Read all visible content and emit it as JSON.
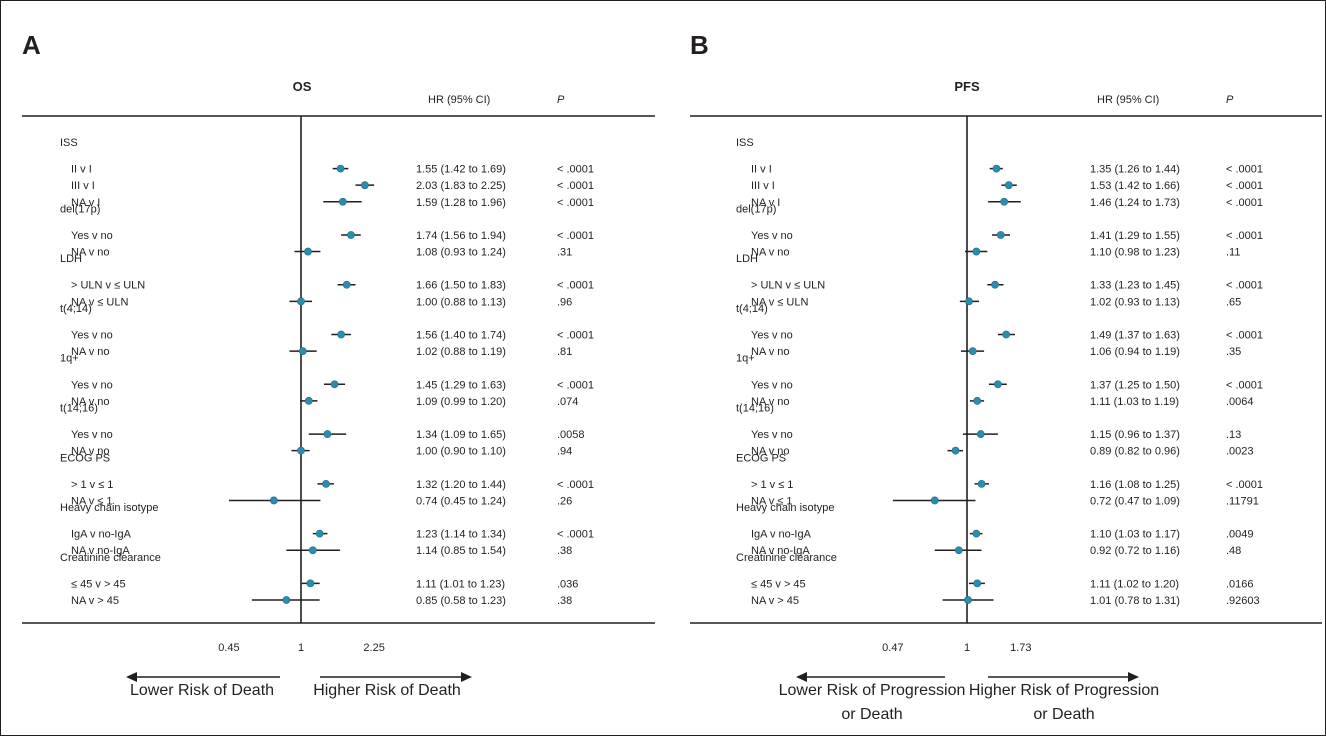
{
  "chart_data": [
    {
      "type": "forest",
      "panel_letter": "A",
      "title": "OS",
      "hr_header": "HR (95% CI)",
      "p_header": "P",
      "axis_ticks": [
        {
          "value": 0.45,
          "label": "0.45"
        },
        {
          "value": 1,
          "label": "1"
        },
        {
          "value": 2.25,
          "label": "2.25"
        }
      ],
      "left_label": [
        "Lower Risk of Death"
      ],
      "right_label": [
        "Higher Risk of Death"
      ],
      "groups": [
        {
          "name": "ISS",
          "rows": [
            {
              "label": "II v I",
              "hr": 1.55,
              "lo": 1.42,
              "hi": 1.69,
              "ci_text": "1.55 (1.42 to 1.69)",
              "p": "< .0001"
            },
            {
              "label": "III v I",
              "hr": 2.03,
              "lo": 1.83,
              "hi": 2.25,
              "ci_text": "2.03 (1.83 to 2.25)",
              "p": "< .0001"
            },
            {
              "label": "NA v I",
              "hr": 1.59,
              "lo": 1.28,
              "hi": 1.96,
              "ci_text": "1.59 (1.28 to 1.96)",
              "p": "< .0001"
            }
          ]
        },
        {
          "name": "del(17p)",
          "rows": [
            {
              "label": "Yes v no",
              "hr": 1.74,
              "lo": 1.56,
              "hi": 1.94,
              "ci_text": "1.74 (1.56 to 1.94)",
              "p": "< .0001"
            },
            {
              "label": "NA v no",
              "hr": 1.08,
              "lo": 0.93,
              "hi": 1.24,
              "ci_text": "1.08 (0.93 to 1.24)",
              "p": ".31"
            }
          ]
        },
        {
          "name": "LDH",
          "rows": [
            {
              "label": "> ULN v ≤ ULN",
              "hr": 1.66,
              "lo": 1.5,
              "hi": 1.83,
              "ci_text": "1.66 (1.50 to 1.83)",
              "p": "< .0001"
            },
            {
              "label": "NA v ≤ ULN",
              "hr": 1.0,
              "lo": 0.88,
              "hi": 1.13,
              "ci_text": "1.00 (0.88 to 1.13)",
              "p": ".96"
            }
          ]
        },
        {
          "name": "t(4;14)",
          "rows": [
            {
              "label": "Yes v no",
              "hr": 1.56,
              "lo": 1.4,
              "hi": 1.74,
              "ci_text": "1.56 (1.40 to 1.74)",
              "p": "< .0001"
            },
            {
              "label": "NA v no",
              "hr": 1.02,
              "lo": 0.88,
              "hi": 1.19,
              "ci_text": "1.02 (0.88 to 1.19)",
              "p": ".81"
            }
          ]
        },
        {
          "name": "1q+",
          "rows": [
            {
              "label": "Yes v no",
              "hr": 1.45,
              "lo": 1.29,
              "hi": 1.63,
              "ci_text": "1.45 (1.29 to 1.63)",
              "p": "< .0001"
            },
            {
              "label": "NA v no",
              "hr": 1.09,
              "lo": 0.99,
              "hi": 1.2,
              "ci_text": "1.09 (0.99 to 1.20)",
              "p": ".074"
            }
          ]
        },
        {
          "name": "t(14;16)",
          "rows": [
            {
              "label": "Yes v no",
              "hr": 1.34,
              "lo": 1.09,
              "hi": 1.65,
              "ci_text": "1.34 (1.09 to 1.65)",
              "p": ".0058"
            },
            {
              "label": "NA v no",
              "hr": 1.0,
              "lo": 0.9,
              "hi": 1.1,
              "ci_text": "1.00 (0.90 to 1.10)",
              "p": ".94"
            }
          ]
        },
        {
          "name": "ECOG PS",
          "rows": [
            {
              "label": "> 1 v ≤ 1",
              "hr": 1.32,
              "lo": 1.2,
              "hi": 1.44,
              "ci_text": "1.32 (1.20 to 1.44)",
              "p": "< .0001"
            },
            {
              "label": "NA v ≤ 1",
              "hr": 0.74,
              "lo": 0.45,
              "hi": 1.24,
              "ci_text": "0.74 (0.45 to 1.24)",
              "p": ".26"
            }
          ]
        },
        {
          "name": "Heavy chain isotype",
          "rows": [
            {
              "label": "IgA v no-IgA",
              "hr": 1.23,
              "lo": 1.14,
              "hi": 1.34,
              "ci_text": "1.23 (1.14 to 1.34)",
              "p": "< .0001"
            },
            {
              "label": "NA v no-IgA",
              "hr": 1.14,
              "lo": 0.85,
              "hi": 1.54,
              "ci_text": "1.14 (0.85 to 1.54)",
              "p": ".38"
            }
          ]
        },
        {
          "name": "Creatinine clearance",
          "rows": [
            {
              "label": "≤ 45 v > 45",
              "hr": 1.11,
              "lo": 1.01,
              "hi": 1.23,
              "ci_text": "1.11 (1.01 to 1.23)",
              "p": ".036"
            },
            {
              "label": "NA v > 45",
              "hr": 0.85,
              "lo": 0.58,
              "hi": 1.23,
              "ci_text": "0.85 (0.58 to 1.23)",
              "p": ".38"
            }
          ]
        }
      ]
    },
    {
      "type": "forest",
      "panel_letter": "B",
      "title": "PFS",
      "hr_header": "HR (95% CI)",
      "p_header": "P",
      "axis_ticks": [
        {
          "value": 0.47,
          "label": "0.47"
        },
        {
          "value": 1,
          "label": "1"
        },
        {
          "value": 1.73,
          "label": "1.73"
        }
      ],
      "left_label": [
        "Lower Risk of Progression",
        "or Death"
      ],
      "right_label": [
        "Higher Risk of Progression",
        "or Death"
      ],
      "groups": [
        {
          "name": "ISS",
          "rows": [
            {
              "label": "II v I",
              "hr": 1.35,
              "lo": 1.26,
              "hi": 1.44,
              "ci_text": "1.35 (1.26 to 1.44)",
              "p": "< .0001"
            },
            {
              "label": "III v I",
              "hr": 1.53,
              "lo": 1.42,
              "hi": 1.66,
              "ci_text": "1.53 (1.42 to 1.66)",
              "p": "< .0001"
            },
            {
              "label": "NA v I",
              "hr": 1.46,
              "lo": 1.24,
              "hi": 1.73,
              "ci_text": "1.46 (1.24 to 1.73)",
              "p": "< .0001"
            }
          ]
        },
        {
          "name": "del(17p)",
          "rows": [
            {
              "label": "Yes v no",
              "hr": 1.41,
              "lo": 1.29,
              "hi": 1.55,
              "ci_text": "1.41 (1.29 to 1.55)",
              "p": "< .0001"
            },
            {
              "label": "NA v no",
              "hr": 1.1,
              "lo": 0.98,
              "hi": 1.23,
              "ci_text": "1.10 (0.98 to 1.23)",
              "p": ".11"
            }
          ]
        },
        {
          "name": "LDH",
          "rows": [
            {
              "label": "> ULN v ≤ ULN",
              "hr": 1.33,
              "lo": 1.23,
              "hi": 1.45,
              "ci_text": "1.33 (1.23 to 1.45)",
              "p": "< .0001"
            },
            {
              "label": "NA v ≤ ULN",
              "hr": 1.02,
              "lo": 0.93,
              "hi": 1.13,
              "ci_text": "1.02 (0.93 to 1.13)",
              "p": ".65"
            }
          ]
        },
        {
          "name": "t(4;14)",
          "rows": [
            {
              "label": "Yes v no",
              "hr": 1.49,
              "lo": 1.37,
              "hi": 1.63,
              "ci_text": "1.49 (1.37 to 1.63)",
              "p": "< .0001"
            },
            {
              "label": "NA v no",
              "hr": 1.06,
              "lo": 0.94,
              "hi": 1.19,
              "ci_text": "1.06 (0.94 to 1.19)",
              "p": ".35"
            }
          ]
        },
        {
          "name": "1q+",
          "rows": [
            {
              "label": "Yes v no",
              "hr": 1.37,
              "lo": 1.25,
              "hi": 1.5,
              "ci_text": "1.37 (1.25 to 1.50)",
              "p": "< .0001"
            },
            {
              "label": "NA v no",
              "hr": 1.11,
              "lo": 1.03,
              "hi": 1.19,
              "ci_text": "1.11 (1.03 to 1.19)",
              "p": ".0064"
            }
          ]
        },
        {
          "name": "t(14;16)",
          "rows": [
            {
              "label": "Yes v no",
              "hr": 1.15,
              "lo": 0.96,
              "hi": 1.37,
              "ci_text": "1.15 (0.96 to 1.37)",
              "p": ".13"
            },
            {
              "label": "NA v no",
              "hr": 0.89,
              "lo": 0.82,
              "hi": 0.96,
              "ci_text": "0.89 (0.82 to 0.96)",
              "p": ".0023"
            }
          ]
        },
        {
          "name": "ECOG PS",
          "rows": [
            {
              "label": "> 1 v ≤ 1",
              "hr": 1.16,
              "lo": 1.08,
              "hi": 1.25,
              "ci_text": "1.16 (1.08 to 1.25)",
              "p": "< .0001"
            },
            {
              "label": "NA v ≤ 1",
              "hr": 0.72,
              "lo": 0.47,
              "hi": 1.09,
              "ci_text": "0.72 (0.47 to 1.09)",
              "p": ".11791"
            }
          ]
        },
        {
          "name": "Heavy chain isotype",
          "rows": [
            {
              "label": "IgA v no-IgA",
              "hr": 1.1,
              "lo": 1.03,
              "hi": 1.17,
              "ci_text": "1.10 (1.03 to 1.17)",
              "p": ".0049"
            },
            {
              "label": "NA v no-IgA",
              "hr": 0.92,
              "lo": 0.72,
              "hi": 1.16,
              "ci_text": "0.92 (0.72 to 1.16)",
              "p": ".48"
            }
          ]
        },
        {
          "name": "Creatinine clearance",
          "rows": [
            {
              "label": "≤ 45 v > 45",
              "hr": 1.11,
              "lo": 1.02,
              "hi": 1.2,
              "ci_text": "1.11 (1.02 to 1.20)",
              "p": ".0166"
            },
            {
              "label": "NA v > 45",
              "hr": 1.01,
              "lo": 0.78,
              "hi": 1.31,
              "ci_text": "1.01 (0.78 to 1.31)",
              "p": ".92603"
            }
          ]
        }
      ]
    }
  ],
  "colors": {
    "point": "#2b8cae",
    "ink": "#231f20"
  }
}
